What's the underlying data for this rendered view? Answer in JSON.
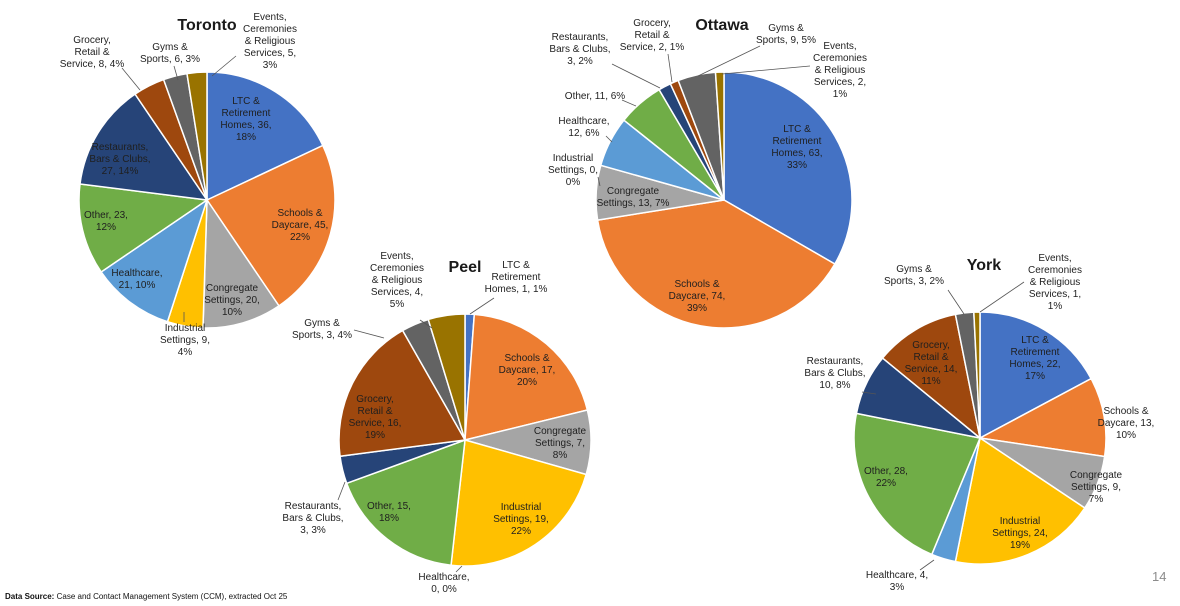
{
  "footer": {
    "source_label": "Data Source:",
    "source_text": "Case and Contact Management System (CCM), extracted Oct 25",
    "page_number": "14"
  },
  "colors": {
    "ltc": "#4472C4",
    "schools": "#ED7D31",
    "congregate": "#A5A5A5",
    "industrial": "#FFC000",
    "healthcare": "#5B9BD5",
    "other": "#70AD47",
    "restaurants": "#264478",
    "grocery": "#9E480E",
    "gyms": "#636363",
    "events": "#997300"
  },
  "chart_data": [
    {
      "type": "pie",
      "title": "Toronto",
      "slices": [
        {
          "category": "ltc",
          "label": "LTC & Retirement Homes, 36, 18%",
          "value": 36,
          "percent": 18
        },
        {
          "category": "schools",
          "label": "Schools & Daycare, 45, 22%",
          "value": 45,
          "percent": 22
        },
        {
          "category": "congregate",
          "label": "Congregate Settings, 20, 10%",
          "value": 20,
          "percent": 10
        },
        {
          "category": "industrial",
          "label": "Industrial Settings, 9, 4%",
          "value": 9,
          "percent": 4
        },
        {
          "category": "healthcare",
          "label": "Healthcare, 21, 10%",
          "value": 21,
          "percent": 10
        },
        {
          "category": "other",
          "label": "Other, 23, 12%",
          "value": 23,
          "percent": 12
        },
        {
          "category": "restaurants",
          "label": "Restaurants, Bars & Clubs, 27, 14%",
          "value": 27,
          "percent": 14
        },
        {
          "category": "grocery",
          "label": "Grocery, Retail & Service, 8, 4%",
          "value": 8,
          "percent": 4
        },
        {
          "category": "gyms",
          "label": "Gyms & Sports, 6, 3%",
          "value": 6,
          "percent": 3
        },
        {
          "category": "events",
          "label": "Events, Ceremonies & Religious Services, 5, 3%",
          "value": 5,
          "percent": 3
        }
      ]
    },
    {
      "type": "pie",
      "title": "Ottawa",
      "slices": [
        {
          "category": "ltc",
          "label": "LTC & Retirement Homes, 63, 33%",
          "value": 63,
          "percent": 33
        },
        {
          "category": "schools",
          "label": "Schools & Daycare, 74, 39%",
          "value": 74,
          "percent": 39
        },
        {
          "category": "congregate",
          "label": "Congregate Settings, 13, 7%",
          "value": 13,
          "percent": 7
        },
        {
          "category": "industrial",
          "label": "Industrial Settings, 0, 0%",
          "value": 0,
          "percent": 0
        },
        {
          "category": "healthcare",
          "label": "Healthcare, 12, 6%",
          "value": 12,
          "percent": 6
        },
        {
          "category": "other",
          "label": "Other, 11, 6%",
          "value": 11,
          "percent": 6
        },
        {
          "category": "restaurants",
          "label": "Restaurants, Bars & Clubs, 3, 2%",
          "value": 3,
          "percent": 2
        },
        {
          "category": "grocery",
          "label": "Grocery, Retail & Service, 2, 1%",
          "value": 2,
          "percent": 1
        },
        {
          "category": "gyms",
          "label": "Gyms & Sports, 9, 5%",
          "value": 9,
          "percent": 5
        },
        {
          "category": "events",
          "label": "Events, Ceremonies & Religious Services, 2, 1%",
          "value": 2,
          "percent": 1
        }
      ]
    },
    {
      "type": "pie",
      "title": "Peel",
      "slices": [
        {
          "category": "ltc",
          "label": "LTC & Retirement Homes, 1, 1%",
          "value": 1,
          "percent": 1
        },
        {
          "category": "schools",
          "label": "Schools & Daycare, 17, 20%",
          "value": 17,
          "percent": 20
        },
        {
          "category": "congregate",
          "label": "Congregate Settings, 7, 8%",
          "value": 7,
          "percent": 8
        },
        {
          "category": "industrial",
          "label": "Industrial Settings, 19, 22%",
          "value": 19,
          "percent": 22
        },
        {
          "category": "healthcare",
          "label": "Healthcare, 0, 0%",
          "value": 0,
          "percent": 0
        },
        {
          "category": "other",
          "label": "Other, 15, 18%",
          "value": 15,
          "percent": 18
        },
        {
          "category": "restaurants",
          "label": "Restaurants, Bars & Clubs, 3, 3%",
          "value": 3,
          "percent": 3
        },
        {
          "category": "grocery",
          "label": "Grocery, Retail & Service, 16, 19%",
          "value": 16,
          "percent": 19
        },
        {
          "category": "gyms",
          "label": "Gyms & Sports, 3, 4%",
          "value": 3,
          "percent": 4
        },
        {
          "category": "events",
          "label": "Events, Ceremonies & Religious Services, 4, 5%",
          "value": 4,
          "percent": 5
        }
      ]
    },
    {
      "type": "pie",
      "title": "York",
      "slices": [
        {
          "category": "ltc",
          "label": "LTC & Retirement Homes, 22, 17%",
          "value": 22,
          "percent": 17
        },
        {
          "category": "schools",
          "label": "Schools & Daycare, 13, 10%",
          "value": 13,
          "percent": 10
        },
        {
          "category": "congregate",
          "label": "Congregate Settings, 9, 7%",
          "value": 9,
          "percent": 7
        },
        {
          "category": "industrial",
          "label": "Industrial Settings, 24, 19%",
          "value": 24,
          "percent": 19
        },
        {
          "category": "healthcare",
          "label": "Healthcare, 4, 3%",
          "value": 4,
          "percent": 3
        },
        {
          "category": "other",
          "label": "Other, 28, 22%",
          "value": 28,
          "percent": 22
        },
        {
          "category": "restaurants",
          "label": "Restaurants, Bars & Clubs, 10, 8%",
          "value": 10,
          "percent": 8
        },
        {
          "category": "grocery",
          "label": "Grocery, Retail & Service, 14, 11%",
          "value": 14,
          "percent": 11
        },
        {
          "category": "gyms",
          "label": "Gyms & Sports, 3, 2%",
          "value": 3,
          "percent": 2
        },
        {
          "category": "events",
          "label": "Events, Ceremonies & Religious Services, 1, 1%",
          "value": 1,
          "percent": 1
        }
      ]
    }
  ]
}
